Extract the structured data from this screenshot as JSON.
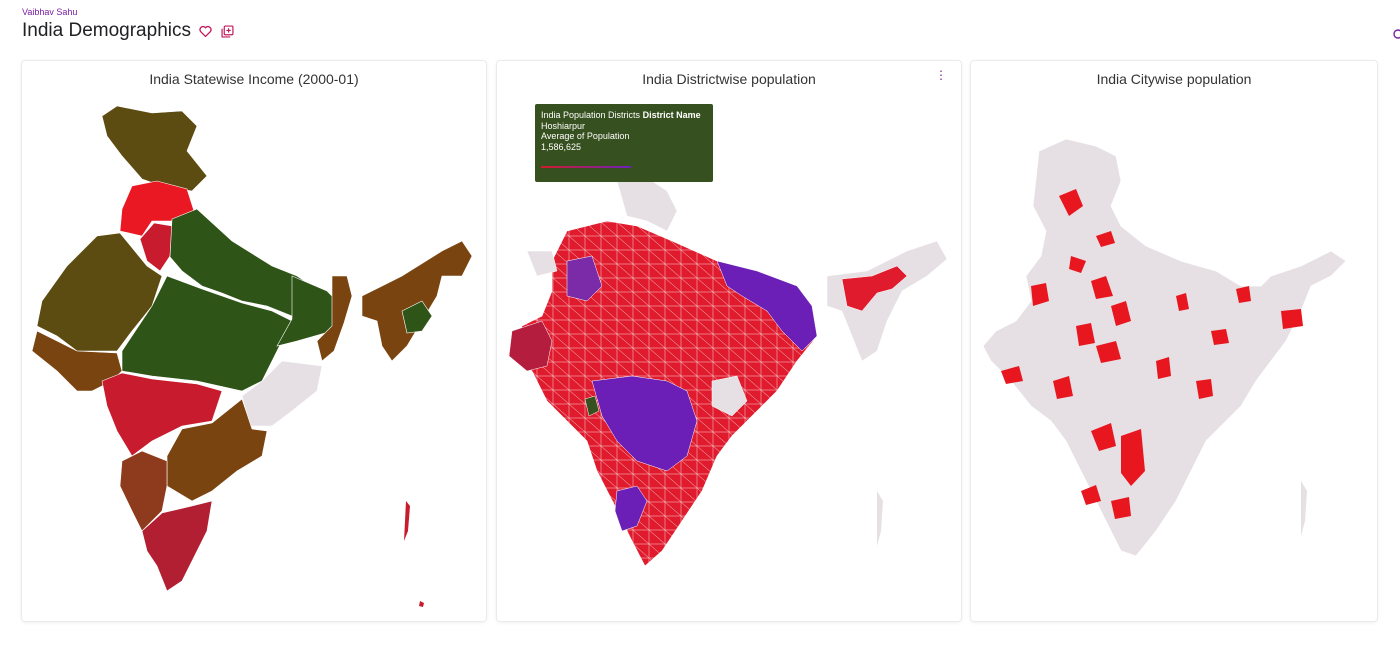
{
  "header": {
    "author": "Vaibhav Sahu",
    "title": "India Demographics",
    "favorite_icon": "heart-outline-icon",
    "copy_icon": "duplicate-icon"
  },
  "colors": {
    "accent": "#7a1fa2",
    "region_empty": "#e6e0e4",
    "income_high_green": "#2f5417",
    "income_olive": "#5d4c11",
    "income_brown": "#7a4410",
    "income_red": "#c81b2e",
    "income_bright_red": "#ea1822",
    "pop_red": "#e01b2d",
    "pop_purple": "#6b1fb6",
    "pop_crimson": "#b51d3f",
    "city_red": "#e8161f",
    "tooltip_bg": "#37501f"
  },
  "cards": {
    "income": {
      "title": "India Statewise Income (2000-01)"
    },
    "district": {
      "title": "India Districtwise population",
      "menu_icon": "more-vert-icon",
      "tooltip": {
        "source": "India Population Districts",
        "field": "District Name",
        "value": "Hoshiarpur",
        "measure": "Average of Population",
        "measure_value": "1,586,625"
      }
    },
    "city": {
      "title": "India Citywise population"
    }
  }
}
